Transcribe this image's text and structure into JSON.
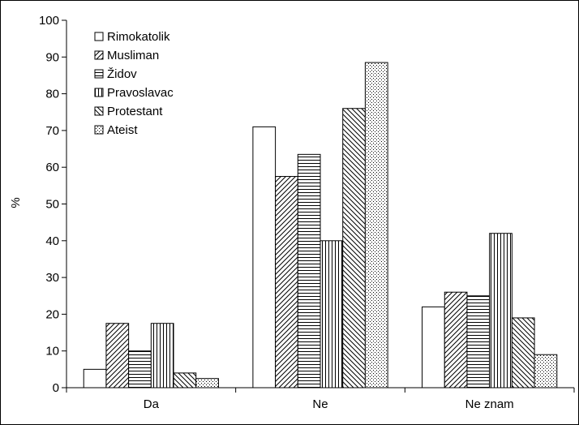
{
  "chart_data": {
    "type": "bar",
    "categories": [
      "Da",
      "Ne",
      "Ne znam"
    ],
    "ylabel": "%",
    "xlabel": "",
    "ylim": [
      0,
      100
    ],
    "yticks": [
      0,
      10,
      20,
      30,
      40,
      50,
      60,
      70,
      80,
      90,
      100
    ],
    "grid": false,
    "legend_position": "top-left",
    "series": [
      {
        "name": "Rimokatolik",
        "pattern": "none",
        "values": [
          5,
          71,
          22
        ]
      },
      {
        "name": "Musliman",
        "pattern": "diagonal-up",
        "values": [
          17.5,
          57.5,
          26
        ]
      },
      {
        "name": "Židov",
        "pattern": "horizontal",
        "values": [
          10,
          63.5,
          25
        ]
      },
      {
        "name": "Pravoslavac",
        "pattern": "vertical",
        "values": [
          17.5,
          40,
          42
        ]
      },
      {
        "name": "Protestant",
        "pattern": "diagonal-down",
        "values": [
          4,
          76,
          19
        ]
      },
      {
        "name": "Ateist",
        "pattern": "dotted",
        "values": [
          2.5,
          88.5,
          9
        ]
      }
    ]
  }
}
